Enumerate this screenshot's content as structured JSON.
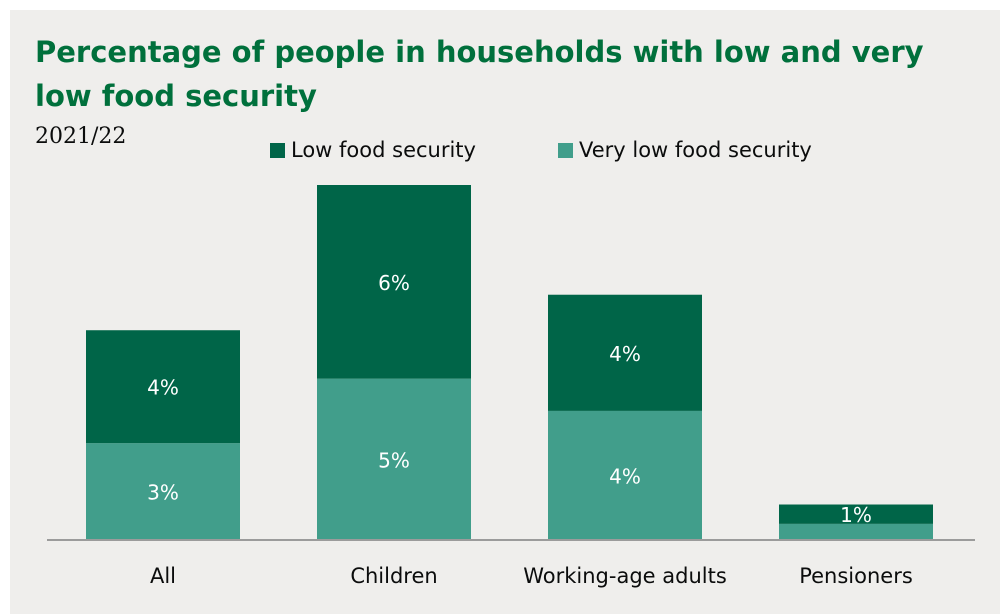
{
  "chart_data": {
    "type": "bar",
    "stacked": true,
    "title": "Percentage of people in households with low and very low food security",
    "subtitle": "2021/22",
    "xlabel": "",
    "ylabel": "",
    "legend_position": "top",
    "grid": false,
    "categories": [
      "All",
      "Children",
      "Working-age adults",
      "Pensioners"
    ],
    "series": [
      {
        "name": "Very low food security",
        "color": "#419e8b",
        "values": [
          3,
          5,
          4,
          0.5
        ],
        "labels": [
          "3%",
          "5%",
          "4%",
          ""
        ]
      },
      {
        "name": "Low food security",
        "color": "#006548",
        "values": [
          3.5,
          6,
          3.6,
          0.6
        ],
        "labels": [
          "4%",
          "6%",
          "4%",
          "1%"
        ]
      }
    ],
    "ylim": [
      0,
      11
    ]
  }
}
